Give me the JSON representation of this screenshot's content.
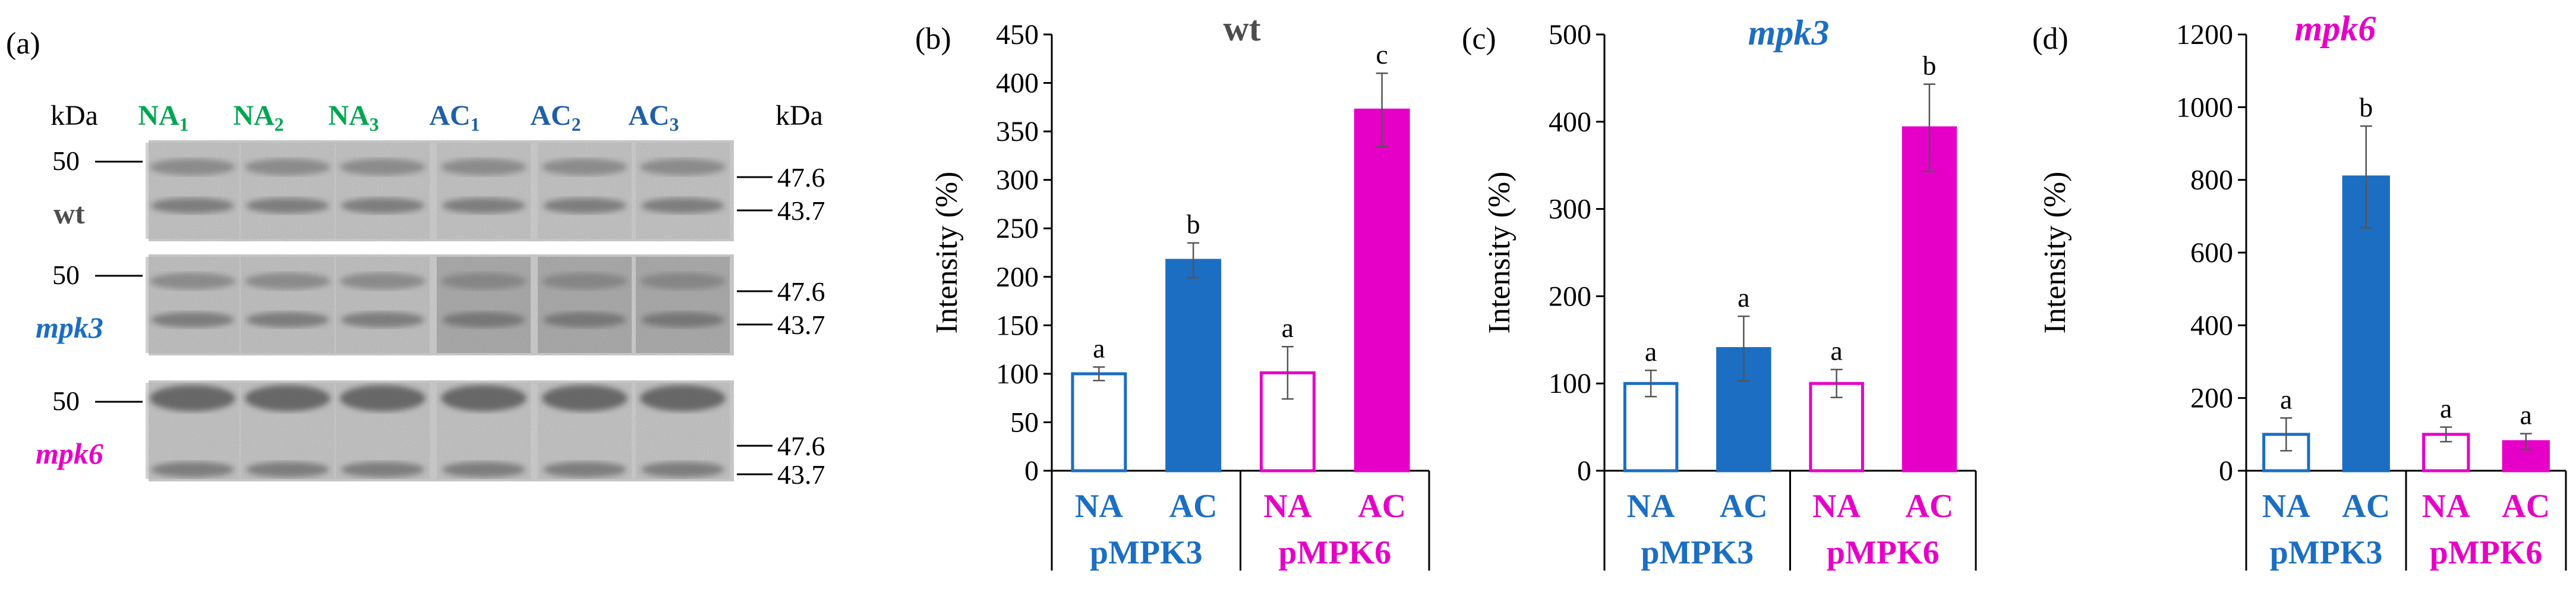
{
  "panel_a": {
    "label": "(a)",
    "kda_left": "kDa",
    "kda_right": "kDa",
    "lanes": [
      {
        "base": "NA",
        "sub": "1",
        "group": "NA"
      },
      {
        "base": "NA",
        "sub": "2",
        "group": "NA"
      },
      {
        "base": "NA",
        "sub": "3",
        "group": "NA"
      },
      {
        "base": "AC",
        "sub": "1",
        "group": "AC"
      },
      {
        "base": "AC",
        "sub": "2",
        "group": "AC"
      },
      {
        "base": "AC",
        "sub": "3",
        "group": "AC"
      }
    ],
    "blots": [
      {
        "genotype": "wt",
        "left_marker": "50",
        "right_markers": [
          "47.6",
          "43.7"
        ]
      },
      {
        "genotype": "mpk3",
        "left_marker": "50",
        "right_markers": [
          "47.6",
          "43.7"
        ]
      },
      {
        "genotype": "mpk6",
        "left_marker": "50",
        "right_markers": [
          "47.6",
          "43.7"
        ]
      }
    ]
  },
  "colors": {
    "na_lane": "#00a651",
    "ac_lane": "#1f5fa8",
    "blue": "#1b6ec2",
    "magenta": "#e600c7",
    "text": "#000000",
    "gray_title": "#4d4d4d"
  },
  "chart_data": [
    {
      "panel": "(b)",
      "type": "bar",
      "title": "wt",
      "ylabel": "Intensity (%)",
      "ylim": [
        0,
        450
      ],
      "yticks": [
        0,
        50,
        100,
        150,
        200,
        250,
        300,
        350,
        400,
        450
      ],
      "categories": [
        "NA",
        "AC",
        "NA",
        "AC"
      ],
      "groups": [
        "pMPK3",
        "pMPK6"
      ],
      "values": [
        100,
        217,
        101,
        372
      ],
      "errors": [
        7,
        18,
        27,
        38
      ],
      "letters": [
        "a",
        "b",
        "a",
        "c"
      ]
    },
    {
      "panel": "(c)",
      "type": "bar",
      "title": "mpk3",
      "ylabel": "Intensity (%)",
      "ylim": [
        0,
        500
      ],
      "yticks": [
        0,
        100,
        200,
        300,
        400,
        500
      ],
      "categories": [
        "NA",
        "AC",
        "NA",
        "AC"
      ],
      "groups": [
        "pMPK3",
        "pMPK6"
      ],
      "values": [
        100,
        140,
        100,
        393
      ],
      "errors": [
        15,
        37,
        16,
        50
      ],
      "letters": [
        "a",
        "a",
        "a",
        "b"
      ]
    },
    {
      "panel": "(d)",
      "type": "bar",
      "title": "mpk6",
      "ylabel": "Intensity (%)",
      "ylim": [
        0,
        1200
      ],
      "yticks": [
        0,
        200,
        400,
        600,
        800,
        1000,
        1200
      ],
      "categories": [
        "NA",
        "AC",
        "NA",
        "AC"
      ],
      "groups": [
        "pMPK3",
        "pMPK6"
      ],
      "values": [
        100,
        808,
        100,
        80
      ],
      "errors": [
        45,
        140,
        20,
        22
      ],
      "letters": [
        "a",
        "b",
        "a",
        "a"
      ]
    }
  ]
}
